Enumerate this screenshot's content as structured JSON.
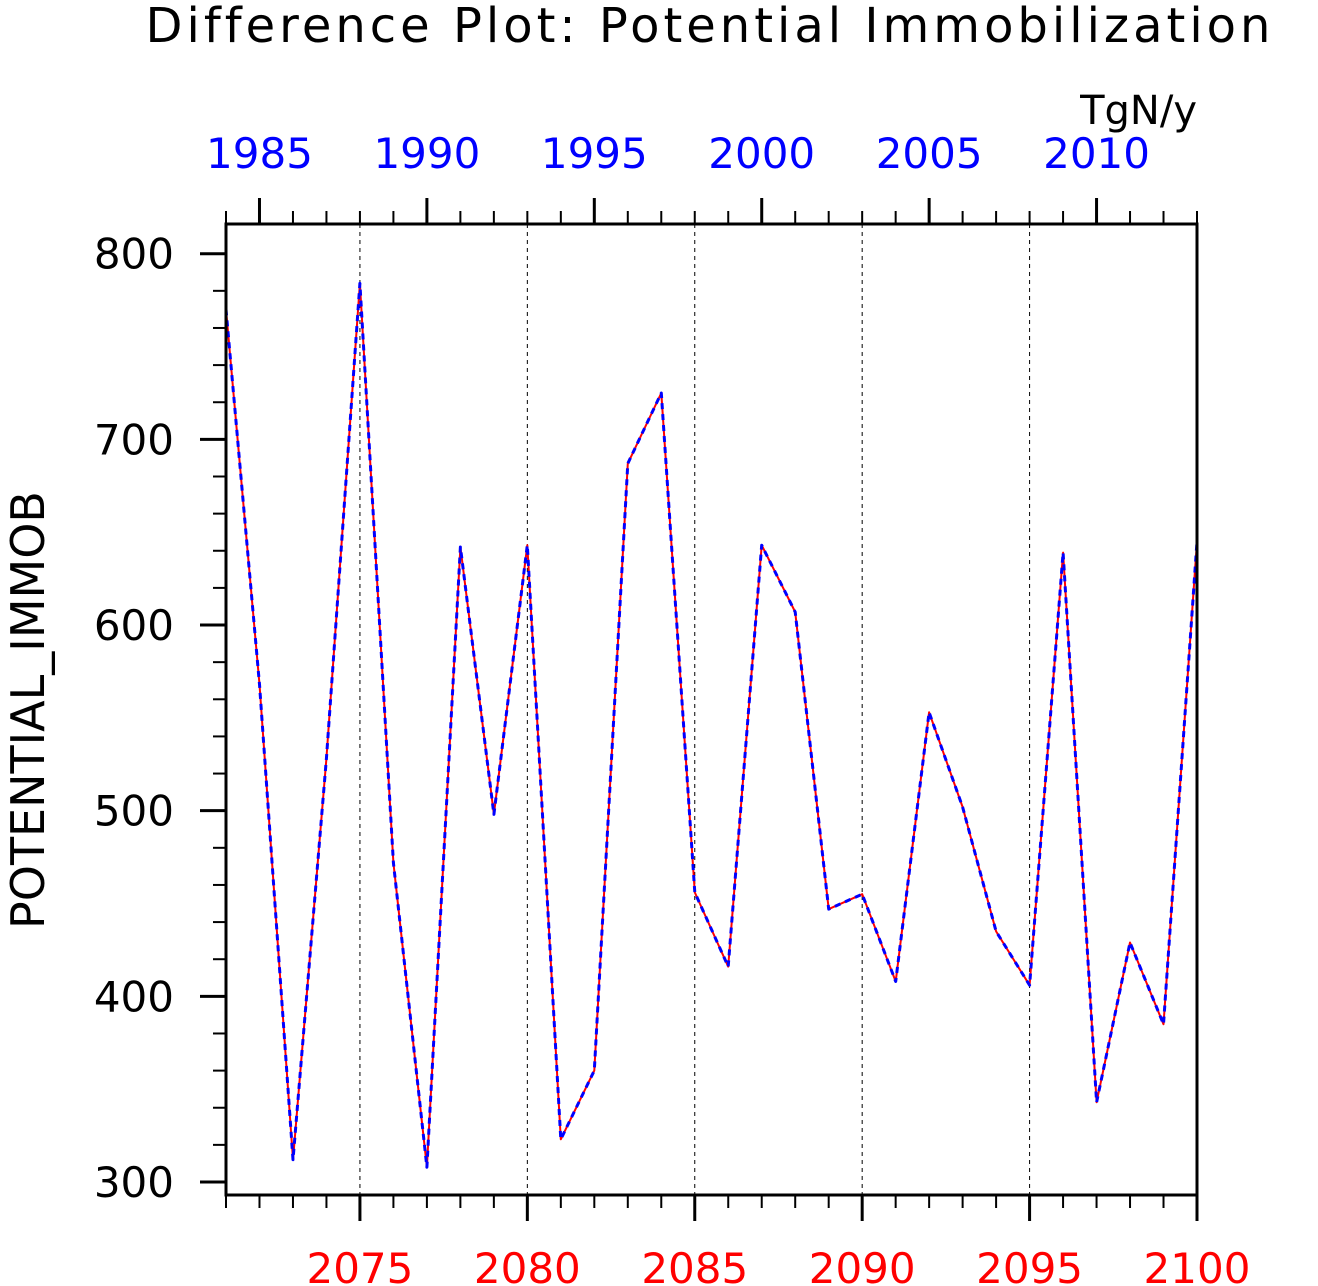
{
  "chart_data": {
    "type": "line",
    "title": "Difference Plot: Potential Immobilization",
    "units": "TgN/y",
    "ylabel": "POTENTIAL_IMMOB",
    "ylim": [
      293,
      816
    ],
    "yticks": [
      "300",
      "400",
      "500",
      "600",
      "700",
      "800"
    ],
    "bottom_axis": {
      "xlim": [
        2071,
        2100
      ],
      "tick_labels": [
        "2075",
        "2080",
        "2085",
        "2090",
        "2095",
        "2100"
      ],
      "color": "#ff0000"
    },
    "top_axis": {
      "xlim": [
        1984,
        2013
      ],
      "tick_labels": [
        "1985",
        "1990",
        "1995",
        "2000",
        "2005",
        "2010"
      ],
      "color": "#0000ff"
    },
    "grid": "vertical-dashed",
    "series": [
      {
        "color": "#ff0000",
        "style": "solid",
        "x_axis": "bottom",
        "x": [
          2071,
          2072,
          2073,
          2074,
          2075,
          2076,
          2077,
          2078,
          2079,
          2080,
          2081,
          2082,
          2083,
          2084,
          2085,
          2086,
          2087,
          2088,
          2089,
          2090,
          2091,
          2092,
          2093,
          2094,
          2095,
          2096,
          2097,
          2098,
          2099,
          2100
        ],
        "values": [
          770,
          568,
          312,
          528,
          784,
          472,
          308,
          642,
          498,
          643,
          323,
          360,
          687,
          725,
          456,
          416,
          643,
          607,
          447,
          455,
          408,
          553,
          502,
          435,
          406,
          639,
          343,
          429,
          385,
          645
        ]
      },
      {
        "color": "#0000ff",
        "style": "dashed",
        "x_axis": "top",
        "x": [
          1984,
          1985,
          1986,
          1987,
          1988,
          1989,
          1990,
          1991,
          1992,
          1993,
          1994,
          1995,
          1996,
          1997,
          1998,
          1999,
          2000,
          2001,
          2002,
          2003,
          2004,
          2005,
          2006,
          2007,
          2008,
          2009,
          2010,
          2011,
          2012,
          2013
        ],
        "values": [
          770,
          568,
          312,
          528,
          784,
          472,
          308,
          642,
          498,
          643,
          323,
          360,
          687,
          725,
          456,
          416,
          643,
          607,
          447,
          455,
          408,
          553,
          502,
          435,
          406,
          639,
          343,
          429,
          385,
          645
        ]
      }
    ]
  }
}
